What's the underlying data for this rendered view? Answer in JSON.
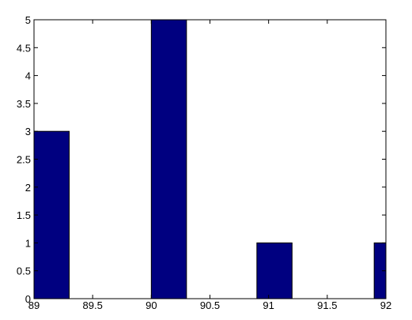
{
  "chart_data": {
    "type": "bar",
    "title": "",
    "xlabel": "",
    "ylabel": "",
    "xlim": [
      89,
      92
    ],
    "ylim": [
      0,
      5
    ],
    "grid": false,
    "bar_color": "#000080",
    "bins": [
      {
        "x0": 89.0,
        "x1": 89.3,
        "value": 3
      },
      {
        "x0": 90.0,
        "x1": 90.3,
        "value": 5
      },
      {
        "x0": 90.9,
        "x1": 91.2,
        "value": 1
      },
      {
        "x0": 91.9,
        "x1": 92.2,
        "value": 1
      }
    ],
    "x_ticks": [
      {
        "value": 89,
        "label": "89"
      },
      {
        "value": 89.5,
        "label": "89.5"
      },
      {
        "value": 90,
        "label": "90"
      },
      {
        "value": 90.5,
        "label": "90.5"
      },
      {
        "value": 91,
        "label": "91"
      },
      {
        "value": 91.5,
        "label": "91.5"
      },
      {
        "value": 92,
        "label": "92"
      }
    ],
    "y_ticks": [
      {
        "value": 0,
        "label": "0"
      },
      {
        "value": 0.5,
        "label": "0.5"
      },
      {
        "value": 1,
        "label": "1"
      },
      {
        "value": 1.5,
        "label": "1.5"
      },
      {
        "value": 2,
        "label": "2"
      },
      {
        "value": 2.5,
        "label": "2.5"
      },
      {
        "value": 3,
        "label": "3"
      },
      {
        "value": 3.5,
        "label": "3.5"
      },
      {
        "value": 4,
        "label": "4"
      },
      {
        "value": 4.5,
        "label": "4.5"
      },
      {
        "value": 5,
        "label": "5"
      }
    ]
  }
}
